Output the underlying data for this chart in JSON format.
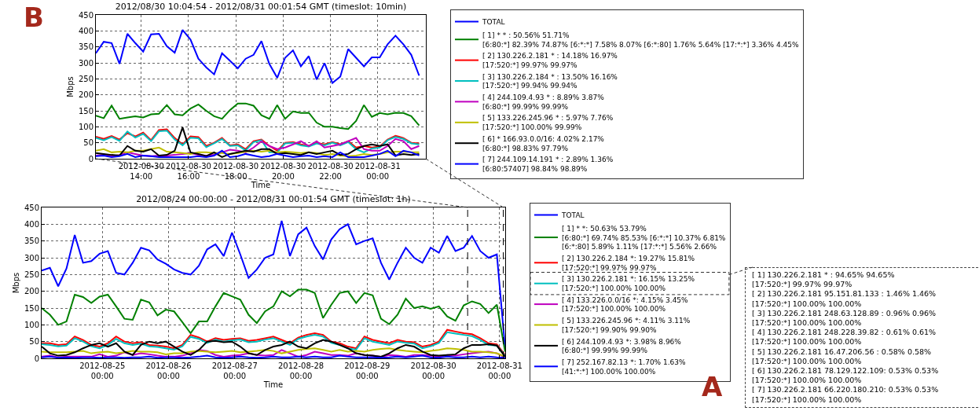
{
  "chart_data": [
    {
      "type": "line",
      "title": "2012/08/30 10:04:54 - 2012/08/31 00:01:54 GMT (timeslot: 10min)",
      "xlabel": "Time",
      "ylabel": "Mbps",
      "annotations": [
        "B"
      ],
      "x": [
        "2012-08-30T12:05",
        "2012-08-30T12:25",
        "2012-08-30T12:45",
        "2012-08-30T13:05",
        "2012-08-30T13:25",
        "2012-08-30T13:45",
        "2012-08-30T14:05",
        "2012-08-30T14:25",
        "2012-08-30T14:45",
        "2012-08-30T15:05",
        "2012-08-30T15:25",
        "2012-08-30T15:45",
        "2012-08-30T16:05",
        "2012-08-30T16:25",
        "2012-08-30T16:45",
        "2012-08-30T17:05",
        "2012-08-30T17:25",
        "2012-08-30T17:45",
        "2012-08-30T18:05",
        "2012-08-30T18:25",
        "2012-08-30T18:45",
        "2012-08-30T19:05",
        "2012-08-30T19:25",
        "2012-08-30T19:45",
        "2012-08-30T20:05",
        "2012-08-30T20:25",
        "2012-08-30T20:45",
        "2012-08-30T21:05",
        "2012-08-30T21:25",
        "2012-08-30T21:45",
        "2012-08-30T22:05",
        "2012-08-30T22:25",
        "2012-08-30T22:45",
        "2012-08-30T23:05",
        "2012-08-30T23:25",
        "2012-08-30T23:45",
        "2012-08-31T00:05",
        "2012-08-31T00:25",
        "2012-08-31T00:45",
        "2012-08-31T01:05",
        "2012-08-31T01:25",
        "2012-08-31T01:45"
      ],
      "series": [
        {
          "name": "TOTAL",
          "color": "#0000ff",
          "values": [
            330,
            366,
            362,
            297,
            391,
            362,
            335,
            389,
            391,
            352,
            332,
            403,
            373,
            313,
            286,
            264,
            330,
            307,
            283,
            313,
            325,
            368,
            297,
            253,
            316,
            339,
            289,
            321,
            248,
            299,
            237,
            257,
            343,
            316,
            289,
            317,
            317,
            358,
            385,
            358,
            325,
            260
          ]
        },
        {
          "name": "[ 1] * * : 50.56% 51.71%\n[6:80:*] 82.39% 74.87% [6:*:*] 7.58% 8.07% [6:*:80] 1.76% 5.64% [17:*:*] 3.36% 4.45%",
          "color": "#008000",
          "values": [
            135,
            127,
            166,
            125,
            129,
            133,
            129,
            139,
            141,
            168,
            139,
            136,
            157,
            170,
            150,
            133,
            125,
            152,
            173,
            173,
            166,
            136,
            125,
            168,
            125,
            148,
            143,
            144,
            113,
            100,
            100,
            96,
            93,
            118,
            168,
            131,
            143,
            139,
            144,
            143,
            133,
            104
          ]
        },
        {
          "name": "[ 2] 130.226.2.181 * : 14.18% 16.97%\n[17:520:*] 99.97% 99.97%",
          "color": "#ff0000",
          "values": [
            69,
            62,
            71,
            60,
            80,
            70,
            82,
            58,
            90,
            92,
            65,
            45,
            70,
            68,
            40,
            50,
            65,
            42,
            45,
            30,
            55,
            60,
            40,
            25,
            50,
            52,
            45,
            40,
            50,
            45,
            52,
            45,
            55,
            35,
            40,
            35,
            38,
            60,
            72,
            65,
            50,
            48
          ]
        },
        {
          "name": "[ 3] 130.226.2.184 * : 13.50% 16.16%\n[17:520:*] 99.94% 99.94%",
          "color": "#00bfbf",
          "values": [
            65,
            58,
            68,
            56,
            85,
            66,
            78,
            55,
            86,
            88,
            60,
            42,
            66,
            64,
            36,
            48,
            62,
            40,
            42,
            26,
            52,
            58,
            20,
            20,
            48,
            50,
            42,
            38,
            48,
            42,
            50,
            42,
            52,
            30,
            20,
            32,
            35,
            58,
            68,
            62,
            48,
            45
          ]
        },
        {
          "name": "[ 4] 244.109.4.93 * : 8.89% 3.87%\n[6:80:*] 99.99% 99.99%",
          "color": "#bf00bf",
          "values": [
            10,
            12,
            8,
            12,
            20,
            15,
            10,
            8,
            10,
            10,
            12,
            15,
            18,
            12,
            10,
            12,
            20,
            28,
            25,
            20,
            35,
            55,
            40,
            30,
            35,
            45,
            55,
            40,
            55,
            35,
            40,
            45,
            55,
            65,
            30,
            25,
            25,
            40,
            62,
            55,
            30,
            40
          ]
        },
        {
          "name": "[ 5] 133.226.245.96 * : 5.97% 7.76%\n[17:520:*] 100.00% 99.99%",
          "color": "#bfbf00",
          "values": [
            25,
            30,
            20,
            22,
            20,
            25,
            25,
            30,
            35,
            22,
            20,
            18,
            15,
            20,
            20,
            18,
            18,
            15,
            18,
            22,
            25,
            22,
            25,
            20,
            22,
            20,
            18,
            20,
            18,
            12,
            15,
            10,
            8,
            10,
            15,
            12,
            15,
            20,
            22,
            22,
            20,
            20
          ]
        },
        {
          "name": "[ 6] * 166.93.0.0/16: 4.02% 2.17%\n[6:80:*] 98.83% 97.79%",
          "color": "#000000",
          "values": [
            18,
            15,
            12,
            10,
            40,
            25,
            22,
            30,
            10,
            12,
            25,
            98,
            20,
            15,
            8,
            20,
            5,
            15,
            20,
            25,
            22,
            30,
            30,
            15,
            18,
            15,
            12,
            20,
            15,
            20,
            25,
            12,
            15,
            30,
            40,
            45,
            40,
            45,
            10,
            15,
            12,
            15
          ]
        },
        {
          "name": "[ 7] 244.109.14.191 * : 2.89% 1.36%\n[6:80:57407] 98.84% 98.89%",
          "color": "#0000ff",
          "values": [
            8,
            10,
            5,
            8,
            15,
            5,
            10,
            8,
            5,
            5,
            5,
            5,
            5,
            8,
            5,
            10,
            25,
            5,
            8,
            15,
            10,
            5,
            8,
            15,
            10,
            5,
            8,
            10,
            5,
            8,
            5,
            20,
            5,
            5,
            5,
            10,
            15,
            25,
            8,
            25,
            20,
            10
          ]
        }
      ],
      "xlim": [
        "2012-08-30T12:05",
        "2012-08-31T02:02"
      ],
      "xticks": [
        {
          "value": "2012-08-30T14:00",
          "label": "2012-08-30\n14:00"
        },
        {
          "value": "2012-08-30T16:00",
          "label": "2012-08-30\n16:00"
        },
        {
          "value": "2012-08-30T18:00",
          "label": "2012-08-30\n18:00"
        },
        {
          "value": "2012-08-30T20:00",
          "label": "2012-08-30\n20:00"
        },
        {
          "value": "2012-08-30T22:00",
          "label": "2012-08-30\n22:00"
        },
        {
          "value": "2012-08-31T00:00",
          "label": "2012-08-31\n00:00"
        }
      ],
      "ylim": [
        0,
        450
      ],
      "yticks": [
        0,
        50,
        100,
        150,
        200,
        250,
        300,
        350,
        400,
        450
      ],
      "grid": true,
      "legend": "right"
    },
    {
      "type": "line",
      "title": "2012/08/24 00:00:00 - 2012/08/31 00:01:54 GMT (timeslot: 1h)",
      "xlabel": "Time",
      "ylabel": "Mbps",
      "annotations": [
        "A",
        "[ 1] 130.226.2.181 * : 94.65% 94.65%\n[17:520:*] 99.97% 99.97%",
        "[ 2] 130.226.2.181 95.151.81.133 : 1.46% 1.46%\n[17:520:*] 100.00% 100.00%",
        "[ 3] 130.226.2.181 248.63.128.89 : 0.96% 0.96%\n[17:520:*] 100.00% 100.00%",
        "[ 4] 130.226.2.181 248.228.39.82 : 0.61% 0.61%\n[17:520:*] 100.00% 100.00%",
        "[ 5] 130.226.2.181 16.47.206.56 : 0.58% 0.58%\n[17:520:*] 100.00% 100.00%",
        "[ 6] 130.226.2.181 78.129.122.109: 0.53% 0.53%\n[17:520:*] 100.00% 100.00%",
        "[ 7] 130.226.2.181 66.220.180.210: 0.53% 0.53%\n[17:520:*] 100.00% 100.00%"
      ],
      "x": [
        "2012-08-24T02:00",
        "2012-08-24T05:00",
        "2012-08-24T08:00",
        "2012-08-24T11:00",
        "2012-08-24T14:00",
        "2012-08-24T17:00",
        "2012-08-24T20:00",
        "2012-08-24T23:00",
        "2012-08-25T02:00",
        "2012-08-25T05:00",
        "2012-08-25T08:00",
        "2012-08-25T11:00",
        "2012-08-25T14:00",
        "2012-08-25T17:00",
        "2012-08-25T20:00",
        "2012-08-25T23:00",
        "2012-08-26T02:00",
        "2012-08-26T05:00",
        "2012-08-26T08:00",
        "2012-08-26T11:00",
        "2012-08-26T14:00",
        "2012-08-26T17:00",
        "2012-08-26T20:00",
        "2012-08-26T23:00",
        "2012-08-27T02:00",
        "2012-08-27T05:00",
        "2012-08-27T08:00",
        "2012-08-27T11:00",
        "2012-08-27T14:00",
        "2012-08-27T17:00",
        "2012-08-27T20:00",
        "2012-08-27T23:00",
        "2012-08-28T02:00",
        "2012-08-28T05:00",
        "2012-08-28T08:00",
        "2012-08-28T11:00",
        "2012-08-28T14:00",
        "2012-08-28T17:00",
        "2012-08-28T20:00",
        "2012-08-28T23:00",
        "2012-08-29T02:00",
        "2012-08-29T05:00",
        "2012-08-29T08:00",
        "2012-08-29T11:00",
        "2012-08-29T14:00",
        "2012-08-29T17:00",
        "2012-08-29T20:00",
        "2012-08-29T23:00",
        "2012-08-30T02:00",
        "2012-08-30T05:00",
        "2012-08-30T08:00",
        "2012-08-30T11:00",
        "2012-08-30T14:00",
        "2012-08-30T17:00",
        "2012-08-30T20:00",
        "2012-08-30T23:00",
        "2012-08-31T02:00"
      ],
      "series": [
        {
          "name": "TOTAL",
          "color": "#0000ff",
          "values": [
            262,
            270,
            215,
            268,
            368,
            285,
            290,
            312,
            320,
            255,
            250,
            285,
            330,
            322,
            295,
            282,
            265,
            255,
            250,
            276,
            325,
            340,
            305,
            375,
            310,
            240,
            265,
            300,
            310,
            410,
            305,
            370,
            390,
            335,
            295,
            355,
            385,
            400,
            340,
            350,
            358,
            285,
            235,
            285,
            330,
            300,
            285,
            330,
            315,
            365,
            320,
            330,
            365,
            320,
            300,
            310,
            30
          ]
        },
        {
          "name": "[ 1] * *: 50.63% 53.79%\n[6:80:*] 69.74% 85.53% [6:*:*] 10.37% 6.81% [6:*:80] 5.89% 1.11% [17:*:*] 5.56% 2.66%",
          "color": "#008000",
          "values": [
            150,
            130,
            100,
            110,
            190,
            183,
            165,
            184,
            190,
            155,
            118,
            115,
            175,
            167,
            128,
            145,
            140,
            108,
            75,
            110,
            110,
            155,
            195,
            185,
            175,
            130,
            105,
            140,
            155,
            200,
            185,
            205,
            205,
            195,
            120,
            160,
            195,
            200,
            165,
            195,
            188,
            118,
            102,
            130,
            178,
            150,
            155,
            148,
            155,
            125,
            112,
            158,
            170,
            162,
            135,
            160,
            20
          ]
        },
        {
          "name": "[ 2] 130.226.2.184 *: 19.27% 15.81%\n[17:520:*] 99.97% 99.97%",
          "color": "#ff0000",
          "values": [
            45,
            45,
            40,
            42,
            65,
            55,
            40,
            35,
            45,
            65,
            50,
            45,
            48,
            40,
            38,
            35,
            30,
            40,
            70,
            62,
            50,
            60,
            55,
            58,
            60,
            52,
            55,
            60,
            65,
            55,
            45,
            62,
            70,
            75,
            70,
            50,
            45,
            35,
            30,
            65,
            55,
            50,
            45,
            55,
            50,
            48,
            35,
            40,
            50,
            85,
            80,
            75,
            72,
            60,
            45,
            42,
            10
          ]
        },
        {
          "name": "[ 3] 130.226.2.181 *: 16.15% 13.25%\n[17:520:*] 100.00% 100.00%",
          "color": "#00bfbf",
          "values": [
            42,
            40,
            36,
            38,
            60,
            50,
            36,
            30,
            40,
            58,
            45,
            40,
            44,
            36,
            34,
            30,
            26,
            36,
            64,
            58,
            46,
            56,
            50,
            54,
            56,
            48,
            50,
            56,
            60,
            50,
            40,
            58,
            65,
            70,
            65,
            46,
            40,
            30,
            26,
            60,
            50,
            45,
            40,
            50,
            46,
            44,
            30,
            36,
            46,
            78,
            74,
            70,
            66,
            55,
            40,
            38,
            8
          ]
        },
        {
          "name": "[ 4] 133.226.0.0/16 *: 4.15% 3.45%\n[17:520:*] 100.00% 100.00%",
          "color": "#bf00bf",
          "values": [
            5,
            8,
            3,
            5,
            5,
            5,
            5,
            12,
            5,
            8,
            18,
            10,
            15,
            12,
            8,
            5,
            5,
            8,
            15,
            25,
            22,
            10,
            5,
            8,
            10,
            15,
            10,
            8,
            10,
            25,
            15,
            5,
            10,
            20,
            15,
            10,
            10,
            8,
            15,
            10,
            8,
            5,
            10,
            8,
            5,
            10,
            10,
            8,
            5,
            10,
            8,
            12,
            15,
            18,
            20,
            15,
            3
          ]
        },
        {
          "name": "[ 5] 133.226.245.96 *: 4.11% 3.11%\n[17:520:*] 99.90% 99.90%",
          "color": "#bfbf00",
          "values": [
            20,
            18,
            18,
            18,
            20,
            22,
            15,
            18,
            20,
            15,
            18,
            22,
            20,
            20,
            18,
            12,
            15,
            15,
            20,
            22,
            20,
            18,
            20,
            22,
            18,
            20,
            22,
            25,
            22,
            15,
            20,
            25,
            28,
            30,
            25,
            20,
            25,
            20,
            22,
            20,
            25,
            28,
            30,
            25,
            22,
            20,
            18,
            22,
            25,
            30,
            28,
            25,
            20,
            20,
            18,
            15,
            5
          ]
        },
        {
          "name": "[ 6] 244.109.4.93 *: 3.98% 8.96%\n[6:80:*] 99.99% 99.99%",
          "color": "#000000",
          "values": [
            35,
            15,
            8,
            10,
            18,
            30,
            40,
            45,
            35,
            45,
            20,
            10,
            40,
            50,
            45,
            50,
            35,
            20,
            10,
            25,
            50,
            52,
            48,
            50,
            35,
            15,
            10,
            25,
            35,
            40,
            50,
            35,
            30,
            45,
            55,
            50,
            40,
            30,
            15,
            10,
            8,
            5,
            15,
            30,
            40,
            35,
            20,
            10,
            8,
            10,
            12,
            30,
            40,
            40,
            42,
            38,
            5
          ]
        },
        {
          "name": "[ 7] 252.167.82.13 *: 1.70% 1.63%\n[41:*:*] 100.00% 100.00%",
          "color": "#0000ff",
          "values": [
            3,
            5,
            2,
            3,
            2,
            3,
            3,
            2,
            3,
            3,
            2,
            3,
            3,
            5,
            2,
            3,
            3,
            2,
            3,
            5,
            8,
            3,
            2,
            3,
            5,
            3,
            2,
            3,
            5,
            3,
            3,
            5,
            3,
            5,
            3,
            3,
            8,
            5,
            3,
            3,
            3,
            2,
            3,
            5,
            3,
            5,
            8,
            3,
            2,
            5,
            3,
            3,
            5,
            3,
            5,
            3,
            2
          ]
        }
      ],
      "xlim": [
        "2012-08-24T02:00",
        "2012-08-31T02:02"
      ],
      "xticks": [
        {
          "value": "2012-08-25T00:00",
          "label": "2012-08-25\n00:00"
        },
        {
          "value": "2012-08-26T00:00",
          "label": "2012-08-26\n00:00"
        },
        {
          "value": "2012-08-27T00:00",
          "label": "2012-08-27\n00:00"
        },
        {
          "value": "2012-08-28T00:00",
          "label": "2012-08-28\n00:00"
        },
        {
          "value": "2012-08-29T00:00",
          "label": "2012-08-29\n00:00"
        },
        {
          "value": "2012-08-30T00:00",
          "label": "2012-08-30\n00:00"
        },
        {
          "value": "2012-08-31T00:00",
          "label": "2012-08-31\n00:00"
        }
      ],
      "ylim": [
        0,
        450
      ],
      "yticks": [
        0,
        50,
        100,
        150,
        200,
        250,
        300,
        350,
        400,
        450
      ],
      "grid": true,
      "legend": "right",
      "ref_lines": [
        {
          "axis": "x",
          "value": "2012-08-30T12:25",
          "color": "#000000",
          "line_style": "dashed"
        },
        {
          "axis": "x",
          "value": "2012-08-31T01:20",
          "color": "#000000",
          "line_style": "dashed"
        }
      ]
    }
  ]
}
